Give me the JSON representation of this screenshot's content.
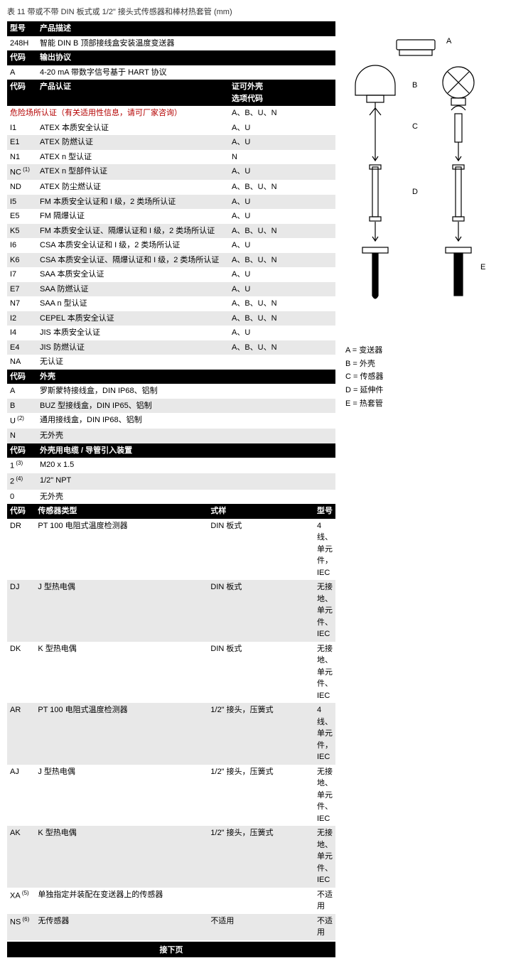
{
  "title": "表 11 带或不带 DIN 板式或 1/2\" 接头式传感器和棒材热套管 (mm)",
  "h1": {
    "col0": "型号",
    "col1": "产品描述"
  },
  "r248h": {
    "c0": "248H",
    "c1": "智能 DIN B 顶部接线盒安装温度变送器"
  },
  "h2": {
    "col0": "代码",
    "col1": "输出协议"
  },
  "rA": {
    "c0": "A",
    "c1": "4-20 mA 带数字信号基于 HART 协议"
  },
  "h3": {
    "col0": "代码",
    "col1": "产品认证",
    "col2a": "证可外壳",
    "col2b": "选项代码"
  },
  "danger": "危险场所认证（有关适用性信息，请可厂家咨询）",
  "certs": [
    {
      "c0": "I1",
      "c1": "ATEX 本质安全认证",
      "c2": "A、U"
    },
    {
      "c0": "E1",
      "c1": "ATEX 防燃认证",
      "c2": "A、U"
    },
    {
      "c0": "N1",
      "c1": "ATEX n 型认证",
      "c2": "N"
    },
    {
      "c0": "NC",
      "sup": "(1)",
      "c1": "ATEX n 型部件认证",
      "c2": "A、U"
    },
    {
      "c0": "ND",
      "c1": "ATEX 防尘燃认证",
      "c2": "A、B、U、N"
    },
    {
      "c0": "I5",
      "c1": "FM 本质安全认证和 I 级，2 类场所认证",
      "c2": "A、U"
    },
    {
      "c0": "E5",
      "c1": "FM 隔爆认证",
      "c2": "A、U"
    },
    {
      "c0": "K5",
      "c1": "FM 本质安全认证、隔爆认证和 I 级，2 类场所认证",
      "c2": "A、B、U、N"
    },
    {
      "c0": "I6",
      "c1": "CSA 本质安全认证和 I 级，2 类场所认证",
      "c2": "A、U"
    },
    {
      "c0": "K6",
      "c1": "CSA 本质安全认证、隔爆认证和 I 级，2 类场所认证",
      "c2": "A、B、U、N"
    },
    {
      "c0": "I7",
      "c1": "SAA 本质安全认证",
      "c2": "A、U"
    },
    {
      "c0": "E7",
      "c1": "SAA 防燃认证",
      "c2": "A、U"
    },
    {
      "c0": "N7",
      "c1": "SAA n 型认证",
      "c2": "A、B、U、N"
    },
    {
      "c0": "I2",
      "c1": "CEPEL 本质安全认证",
      "c2": "A、B、U、N"
    },
    {
      "c0": "I4",
      "c1": "JIS 本质安全认证",
      "c2": "A、U"
    },
    {
      "c0": "E4",
      "c1": "JIS 防燃认证",
      "c2": "A、B、U、N"
    },
    {
      "c0": "NA",
      "c1": "无认证",
      "c2": ""
    }
  ],
  "h4": {
    "col0": "代码",
    "col1": "外壳"
  },
  "enclosure": [
    {
      "c0": "A",
      "c1": "罗斯蒙特接线盒，DIN IP68、铝制"
    },
    {
      "c0": "B",
      "c1": "BUZ 型接线盒，DIN IP65、铝制"
    },
    {
      "c0": "U",
      "sup": "(2)",
      "c1": "通用接线盒，DIN IP68、铝制"
    },
    {
      "c0": "N",
      "c1": "无外壳"
    }
  ],
  "h5": {
    "col0": "代码",
    "col1": "外壳用电缆 / 导管引入装置"
  },
  "entry": [
    {
      "c0": "1",
      "sup": "(3)",
      "c1": "M20 x 1.5"
    },
    {
      "c0": "2",
      "sup": "(4)",
      "c1": "1/2\" NPT"
    },
    {
      "c0": "0",
      "c1": "无外壳"
    }
  ],
  "h6": {
    "col0": "代码",
    "col1": "传感器类型",
    "col2": "式样",
    "col3": "型号"
  },
  "sensors": [
    {
      "c0": "DR",
      "c1": "PT 100 电阻式温度检测器",
      "c2": "DIN 板式",
      "c3": "4 线、单元件，IEC"
    },
    {
      "c0": "DJ",
      "c1": "J 型热电偶",
      "c2": "DIN 板式",
      "c3": "无接地、单元件、IEC"
    },
    {
      "c0": "DK",
      "c1": "K 型热电偶",
      "c2": "DIN 板式",
      "c3": "无接地、单元件、IEC"
    },
    {
      "c0": "AR",
      "c1": "PT 100 电阻式温度检测器",
      "c2": "1/2\" 接头，压簧式",
      "c3": "4 线、单元件，IEC"
    },
    {
      "c0": "AJ",
      "c1": "J 型热电偶",
      "c2": "1/2\" 接头，压簧式",
      "c3": "无接地、单元件、IEC"
    },
    {
      "c0": "AK",
      "c1": "K 型热电偶",
      "c2": "1/2\" 接头，压簧式",
      "c3": "无接地、单元件、IEC"
    },
    {
      "c0": "XA",
      "sup": "(5)",
      "c1": "单独指定并装配在变送器上的传感器",
      "c2": "",
      "c3": "不适用"
    },
    {
      "c0": "NS",
      "sup": "(6)",
      "c1": "无传感器",
      "c2": "不适用",
      "c3": "不适用"
    }
  ],
  "continue": "接下页",
  "legend": {
    "a": "A = 变送器",
    "b": "B = 外壳",
    "c": "C = 传感器",
    "d": "D = 延伸件",
    "e": "E = 热套管"
  },
  "diag": {
    "A": "A",
    "B": "B",
    "C": "C",
    "D": "D",
    "E": "E"
  },
  "colors": {
    "hdr_bg": "#000000",
    "hdr_fg": "#ffffff",
    "alt_bg": "#e8e8e8",
    "danger_fg": "#b40000"
  }
}
